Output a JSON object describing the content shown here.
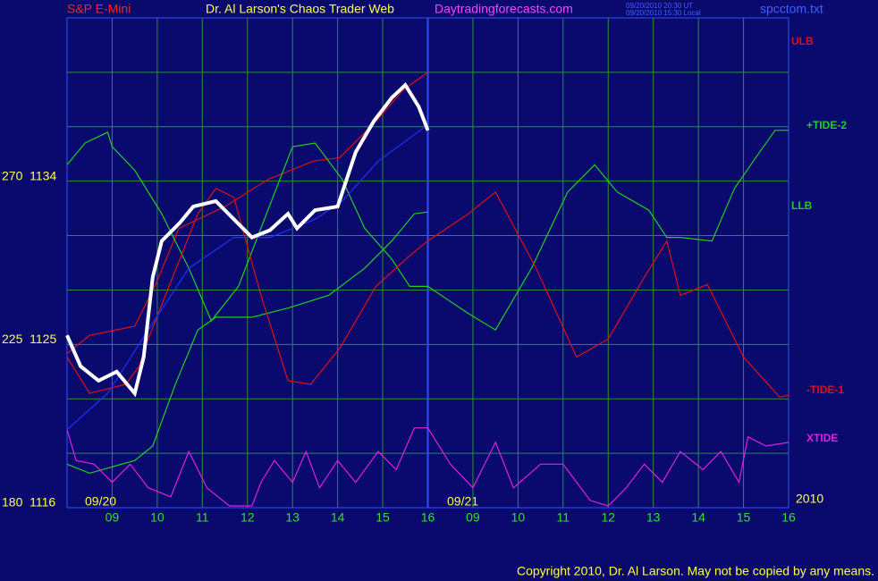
{
  "chart_data": {
    "type": "line",
    "header": {
      "left": "S&P E-Mini",
      "title": "Dr. Al Larson's Chaos Trader Web",
      "site": "Daytradingforecasts.com",
      "time_ut": "09/20/2010 20:30 UT",
      "time_local": "09/20/2010 15:30 Local",
      "file": "spcctom.txt"
    },
    "dates": [
      "09/20",
      "09/21",
      "2010"
    ],
    "copyright": "Copyright 2010, Dr. Al Larson. May not be copied by any means.",
    "xlim": [
      0,
      16
    ],
    "ylim": [
      1116,
      1143
    ],
    "xticks": [
      {
        "value": 1,
        "label": "09"
      },
      {
        "value": 2,
        "label": "10"
      },
      {
        "value": 3,
        "label": "11"
      },
      {
        "value": 4,
        "label": "12"
      },
      {
        "value": 5,
        "label": "13"
      },
      {
        "value": 6,
        "label": "14"
      },
      {
        "value": 7,
        "label": "15"
      },
      {
        "value": 8,
        "label": "16"
      },
      {
        "value": 9,
        "label": "09"
      },
      {
        "value": 10,
        "label": "10"
      },
      {
        "value": 11,
        "label": "11"
      },
      {
        "value": 12,
        "label": "12"
      },
      {
        "value": 13,
        "label": "13"
      },
      {
        "value": 14,
        "label": "14"
      },
      {
        "value": 15,
        "label": "15"
      },
      {
        "value": 16,
        "label": "16"
      }
    ],
    "yticks": [
      {
        "value": 1116,
        "label": "180  1116"
      },
      {
        "value": 1125,
        "label": "225  1125"
      },
      {
        "value": 1134,
        "label": "270  1134"
      }
    ],
    "ygrid": [
      1119,
      1122,
      1128,
      1131,
      1137,
      1140,
      1143
    ],
    "grid": true,
    "series": [
      {
        "name": "ULB",
        "color": "#e01010",
        "x": [
          0,
          0.5,
          1.5,
          1.98,
          2.48,
          3.5,
          4.46,
          5.46,
          6.05,
          6.85,
          7.44,
          8.0
        ],
        "values": [
          1124.5,
          1125.5,
          1126.0,
          1128.4,
          1131.4,
          1132.6,
          1134.1,
          1135.1,
          1135.3,
          1137.3,
          1139.0,
          1140.0
        ]
      },
      {
        "name": "+TIDE-2",
        "color": "#20d020",
        "x": [
          0,
          0.4,
          0.9,
          1.0,
          1.5,
          2.1,
          2.7,
          3.2,
          3.8,
          4.5,
          5.0,
          5.5,
          6.1,
          6.6,
          7.2,
          7.6,
          8.0,
          8.9,
          9.5,
          10.3,
          11.1,
          11.7,
          12.2,
          12.9,
          13.3,
          13.6,
          14.3,
          14.8,
          15.3,
          15.7,
          16
        ],
        "values": [
          1134.9,
          1136.1,
          1136.7,
          1135.9,
          1134.6,
          1132.2,
          1129.2,
          1126.3,
          1128.2,
          1132.7,
          1135.9,
          1136.1,
          1134.1,
          1131.4,
          1129.7,
          1128.2,
          1128.2,
          1126.7,
          1125.8,
          1129.2,
          1133.4,
          1134.9,
          1133.4,
          1132.4,
          1130.9,
          1130.9,
          1130.7,
          1133.6,
          1135.4,
          1136.8,
          1136.8
        ]
      },
      {
        "name": "LLB",
        "color": "#20d020",
        "x": [
          0,
          0.5,
          1.5,
          1.9,
          2.4,
          2.9,
          3.3,
          4.1,
          4.9,
          5.8,
          6.6,
          7.2,
          7.7,
          8.0
        ],
        "values": [
          1118.4,
          1117.9,
          1118.6,
          1119.4,
          1122.8,
          1125.8,
          1126.5,
          1126.5,
          1127.0,
          1127.7,
          1129.2,
          1130.7,
          1132.2,
          1132.3
        ]
      },
      {
        "name": "-TIDE-1",
        "color": "#e01010",
        "x": [
          0,
          0.5,
          1.3,
          1.6,
          1.8,
          2.5,
          2.9,
          3.3,
          3.7,
          4.3,
          4.9,
          5.4,
          6.05,
          6.85,
          7.6,
          8.0,
          8.9,
          9.5,
          10.4,
          11.3,
          12.0,
          12.8,
          13.3,
          13.6,
          14.2,
          15.0,
          15.8,
          16
        ],
        "values": [
          1124.3,
          1122.3,
          1122.8,
          1123.8,
          1125.3,
          1129.7,
          1132.2,
          1133.6,
          1133.1,
          1127.7,
          1123.0,
          1122.8,
          1124.8,
          1128.2,
          1129.9,
          1130.7,
          1132.2,
          1133.4,
          1129.2,
          1124.3,
          1125.3,
          1128.7,
          1130.7,
          1127.7,
          1128.3,
          1124.3,
          1122.1,
          1122.2
        ]
      },
      {
        "name": "XTIDE",
        "color": "#e020e0",
        "x": [
          0,
          0.2,
          0.6,
          1.0,
          1.4,
          1.8,
          2.3,
          2.7,
          3.1,
          3.6,
          4.1,
          4.3,
          4.6,
          5.0,
          5.3,
          5.6,
          6.0,
          6.4,
          6.9,
          7.3,
          7.7,
          8.0,
          8.5,
          9.0,
          9.5,
          9.9,
          10.5,
          11.0,
          11.6,
          12.0,
          12.4,
          12.8,
          13.2,
          13.6,
          14.1,
          14.5,
          14.9,
          15.1,
          15.5,
          16
        ],
        "values": [
          1120.3,
          1118.6,
          1118.4,
          1117.4,
          1118.4,
          1117.1,
          1116.6,
          1119.1,
          1117.1,
          1116.1,
          1116.1,
          1117.4,
          1118.6,
          1117.4,
          1119.1,
          1117.1,
          1118.6,
          1117.4,
          1119.1,
          1118.1,
          1120.4,
          1120.4,
          1118.4,
          1117.1,
          1119.6,
          1117.1,
          1118.4,
          1118.4,
          1116.4,
          1116.1,
          1117.1,
          1118.4,
          1117.4,
          1119.1,
          1118.1,
          1119.1,
          1117.4,
          1119.9,
          1119.4,
          1119.6
        ]
      },
      {
        "color": "#2030ff",
        "x": [
          0,
          0.9,
          1.8,
          2.7,
          3.7,
          4.5,
          5.5,
          6.1,
          6.9,
          8.0
        ],
        "values": [
          1120.3,
          1122.3,
          1125.8,
          1129.2,
          1130.9,
          1130.9,
          1131.9,
          1132.9,
          1135.1,
          1137.1
        ]
      },
      {
        "color": "#ffffff",
        "x": [
          0,
          0.3,
          0.7,
          1.1,
          1.5,
          1.7,
          1.9,
          2.1,
          2.5,
          2.8,
          3.3,
          3.7,
          4.1,
          4.5,
          4.9,
          5.1,
          5.5,
          6.0,
          6.2,
          6.4,
          6.8,
          7.2,
          7.5,
          7.8,
          8.0
        ],
        "values": [
          1125.5,
          1123.8,
          1123.0,
          1123.5,
          1122.3,
          1124.3,
          1128.7,
          1130.7,
          1131.7,
          1132.6,
          1132.9,
          1131.9,
          1130.9,
          1131.3,
          1132.2,
          1131.4,
          1132.4,
          1132.6,
          1134.1,
          1135.6,
          1137.3,
          1138.6,
          1139.3,
          1138.1,
          1136.8
        ]
      }
    ]
  }
}
